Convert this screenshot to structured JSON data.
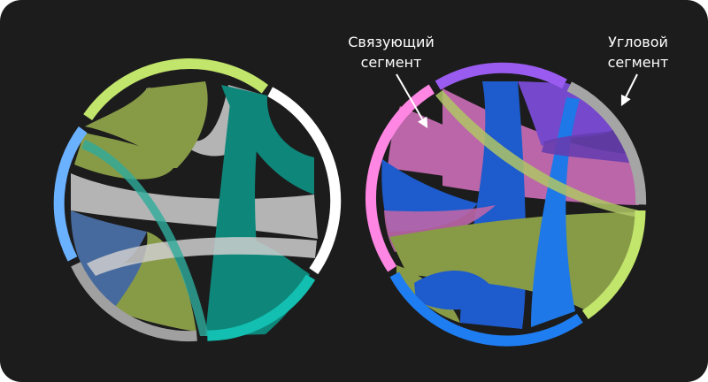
{
  "annotations": {
    "link_segment": [
      "Связующий",
      "сегмент"
    ],
    "arc_segment": [
      "Угловой",
      "сегмент"
    ]
  },
  "colors": {
    "background": "#1c1c1c",
    "text": "#ffffff",
    "olive": "#8da24a",
    "lime_arc": "#c2e56b",
    "teal": "#0e8c80",
    "teal_arc": "#12bfb0",
    "gray": "#bdbdbd",
    "white_arc": "#ffffff",
    "light_blue_arc": "#6ab1ff",
    "steel_blue": "#4a6fa5",
    "purple": "#7a4bd6",
    "purple_arc": "#9a5cf0",
    "magenta": "#c46ab0",
    "pink_arc": "#ff86e2",
    "royal_blue": "#1f5fd6",
    "blue_arc": "#1f7df2",
    "gray_arc": "#9e9e9e"
  }
}
